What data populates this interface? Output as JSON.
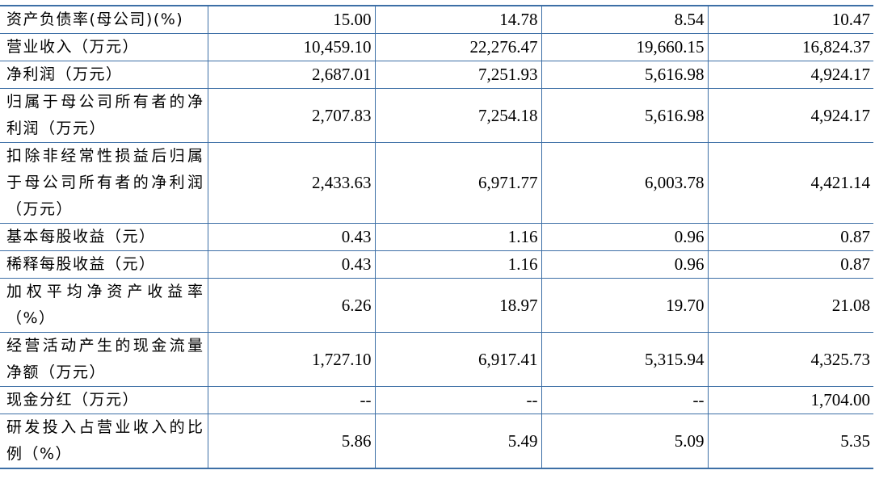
{
  "table": {
    "rows": [
      {
        "label": "资产负债率(母公司)(%)",
        "values": [
          "15.00",
          "14.78",
          "8.54",
          "10.47"
        ]
      },
      {
        "label": "营业收入（万元）",
        "values": [
          "10,459.10",
          "22,276.47",
          "19,660.15",
          "16,824.37"
        ]
      },
      {
        "label": "净利润（万元）",
        "values": [
          "2,687.01",
          "7,251.93",
          "5,616.98",
          "4,924.17"
        ]
      },
      {
        "label": "归属于母公司所有者的净利润（万元）",
        "values": [
          "2,707.83",
          "7,254.18",
          "5,616.98",
          "4,924.17"
        ]
      },
      {
        "label": "扣除非经常性损益后归属于母公司所有者的净利润（万元）",
        "values": [
          "2,433.63",
          "6,971.77",
          "6,003.78",
          "4,421.14"
        ]
      },
      {
        "label": "基本每股收益（元）",
        "values": [
          "0.43",
          "1.16",
          "0.96",
          "0.87"
        ]
      },
      {
        "label": "稀释每股收益（元）",
        "values": [
          "0.43",
          "1.16",
          "0.96",
          "0.87"
        ]
      },
      {
        "label": "加权平均净资产收益率（%）",
        "values": [
          "6.26",
          "18.97",
          "19.70",
          "21.08"
        ]
      },
      {
        "label": "经营活动产生的现金流量净额（万元）",
        "values": [
          "1,727.10",
          "6,917.41",
          "5,315.94",
          "4,325.73"
        ]
      },
      {
        "label": "现金分红（万元）",
        "values": [
          "--",
          "--",
          "--",
          "1,704.00"
        ]
      },
      {
        "label": "研发投入占营业收入的比例（%）",
        "values": [
          "5.86",
          "5.49",
          "5.09",
          "5.35"
        ]
      }
    ]
  }
}
